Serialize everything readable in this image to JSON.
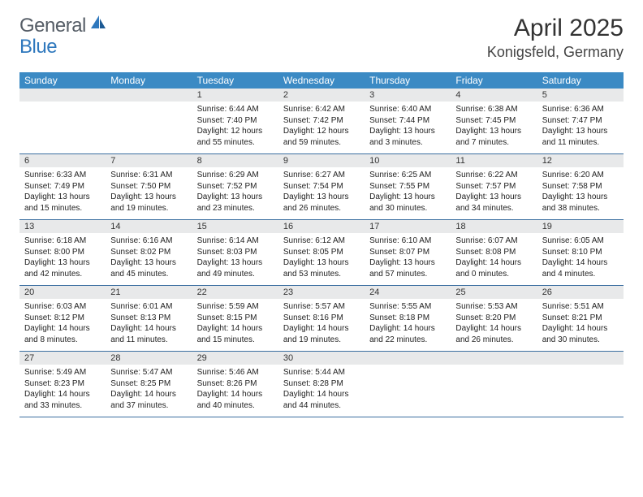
{
  "logo": {
    "general": "General",
    "blue": "Blue"
  },
  "title": "April 2025",
  "location": "Konigsfeld, Germany",
  "colors": {
    "header_bg": "#3b8ac4",
    "header_text": "#ffffff",
    "daynum_bg": "#e8e9ea",
    "row_border": "#3b6fa0",
    "text": "#222222",
    "logo_gray": "#555d66",
    "logo_blue": "#2f78bd"
  },
  "dayNames": [
    "Sunday",
    "Monday",
    "Tuesday",
    "Wednesday",
    "Thursday",
    "Friday",
    "Saturday"
  ],
  "weeks": [
    [
      {
        "num": "",
        "empty": true
      },
      {
        "num": "",
        "empty": true
      },
      {
        "num": "1",
        "sunrise": "Sunrise: 6:44 AM",
        "sunset": "Sunset: 7:40 PM",
        "daylight": "Daylight: 12 hours and 55 minutes."
      },
      {
        "num": "2",
        "sunrise": "Sunrise: 6:42 AM",
        "sunset": "Sunset: 7:42 PM",
        "daylight": "Daylight: 12 hours and 59 minutes."
      },
      {
        "num": "3",
        "sunrise": "Sunrise: 6:40 AM",
        "sunset": "Sunset: 7:44 PM",
        "daylight": "Daylight: 13 hours and 3 minutes."
      },
      {
        "num": "4",
        "sunrise": "Sunrise: 6:38 AM",
        "sunset": "Sunset: 7:45 PM",
        "daylight": "Daylight: 13 hours and 7 minutes."
      },
      {
        "num": "5",
        "sunrise": "Sunrise: 6:36 AM",
        "sunset": "Sunset: 7:47 PM",
        "daylight": "Daylight: 13 hours and 11 minutes."
      }
    ],
    [
      {
        "num": "6",
        "sunrise": "Sunrise: 6:33 AM",
        "sunset": "Sunset: 7:49 PM",
        "daylight": "Daylight: 13 hours and 15 minutes."
      },
      {
        "num": "7",
        "sunrise": "Sunrise: 6:31 AM",
        "sunset": "Sunset: 7:50 PM",
        "daylight": "Daylight: 13 hours and 19 minutes."
      },
      {
        "num": "8",
        "sunrise": "Sunrise: 6:29 AM",
        "sunset": "Sunset: 7:52 PM",
        "daylight": "Daylight: 13 hours and 23 minutes."
      },
      {
        "num": "9",
        "sunrise": "Sunrise: 6:27 AM",
        "sunset": "Sunset: 7:54 PM",
        "daylight": "Daylight: 13 hours and 26 minutes."
      },
      {
        "num": "10",
        "sunrise": "Sunrise: 6:25 AM",
        "sunset": "Sunset: 7:55 PM",
        "daylight": "Daylight: 13 hours and 30 minutes."
      },
      {
        "num": "11",
        "sunrise": "Sunrise: 6:22 AM",
        "sunset": "Sunset: 7:57 PM",
        "daylight": "Daylight: 13 hours and 34 minutes."
      },
      {
        "num": "12",
        "sunrise": "Sunrise: 6:20 AM",
        "sunset": "Sunset: 7:58 PM",
        "daylight": "Daylight: 13 hours and 38 minutes."
      }
    ],
    [
      {
        "num": "13",
        "sunrise": "Sunrise: 6:18 AM",
        "sunset": "Sunset: 8:00 PM",
        "daylight": "Daylight: 13 hours and 42 minutes."
      },
      {
        "num": "14",
        "sunrise": "Sunrise: 6:16 AM",
        "sunset": "Sunset: 8:02 PM",
        "daylight": "Daylight: 13 hours and 45 minutes."
      },
      {
        "num": "15",
        "sunrise": "Sunrise: 6:14 AM",
        "sunset": "Sunset: 8:03 PM",
        "daylight": "Daylight: 13 hours and 49 minutes."
      },
      {
        "num": "16",
        "sunrise": "Sunrise: 6:12 AM",
        "sunset": "Sunset: 8:05 PM",
        "daylight": "Daylight: 13 hours and 53 minutes."
      },
      {
        "num": "17",
        "sunrise": "Sunrise: 6:10 AM",
        "sunset": "Sunset: 8:07 PM",
        "daylight": "Daylight: 13 hours and 57 minutes."
      },
      {
        "num": "18",
        "sunrise": "Sunrise: 6:07 AM",
        "sunset": "Sunset: 8:08 PM",
        "daylight": "Daylight: 14 hours and 0 minutes."
      },
      {
        "num": "19",
        "sunrise": "Sunrise: 6:05 AM",
        "sunset": "Sunset: 8:10 PM",
        "daylight": "Daylight: 14 hours and 4 minutes."
      }
    ],
    [
      {
        "num": "20",
        "sunrise": "Sunrise: 6:03 AM",
        "sunset": "Sunset: 8:12 PM",
        "daylight": "Daylight: 14 hours and 8 minutes."
      },
      {
        "num": "21",
        "sunrise": "Sunrise: 6:01 AM",
        "sunset": "Sunset: 8:13 PM",
        "daylight": "Daylight: 14 hours and 11 minutes."
      },
      {
        "num": "22",
        "sunrise": "Sunrise: 5:59 AM",
        "sunset": "Sunset: 8:15 PM",
        "daylight": "Daylight: 14 hours and 15 minutes."
      },
      {
        "num": "23",
        "sunrise": "Sunrise: 5:57 AM",
        "sunset": "Sunset: 8:16 PM",
        "daylight": "Daylight: 14 hours and 19 minutes."
      },
      {
        "num": "24",
        "sunrise": "Sunrise: 5:55 AM",
        "sunset": "Sunset: 8:18 PM",
        "daylight": "Daylight: 14 hours and 22 minutes."
      },
      {
        "num": "25",
        "sunrise": "Sunrise: 5:53 AM",
        "sunset": "Sunset: 8:20 PM",
        "daylight": "Daylight: 14 hours and 26 minutes."
      },
      {
        "num": "26",
        "sunrise": "Sunrise: 5:51 AM",
        "sunset": "Sunset: 8:21 PM",
        "daylight": "Daylight: 14 hours and 30 minutes."
      }
    ],
    [
      {
        "num": "27",
        "sunrise": "Sunrise: 5:49 AM",
        "sunset": "Sunset: 8:23 PM",
        "daylight": "Daylight: 14 hours and 33 minutes."
      },
      {
        "num": "28",
        "sunrise": "Sunrise: 5:47 AM",
        "sunset": "Sunset: 8:25 PM",
        "daylight": "Daylight: 14 hours and 37 minutes."
      },
      {
        "num": "29",
        "sunrise": "Sunrise: 5:46 AM",
        "sunset": "Sunset: 8:26 PM",
        "daylight": "Daylight: 14 hours and 40 minutes."
      },
      {
        "num": "30",
        "sunrise": "Sunrise: 5:44 AM",
        "sunset": "Sunset: 8:28 PM",
        "daylight": "Daylight: 14 hours and 44 minutes."
      },
      {
        "num": "",
        "empty": true
      },
      {
        "num": "",
        "empty": true
      },
      {
        "num": "",
        "empty": true
      }
    ]
  ]
}
